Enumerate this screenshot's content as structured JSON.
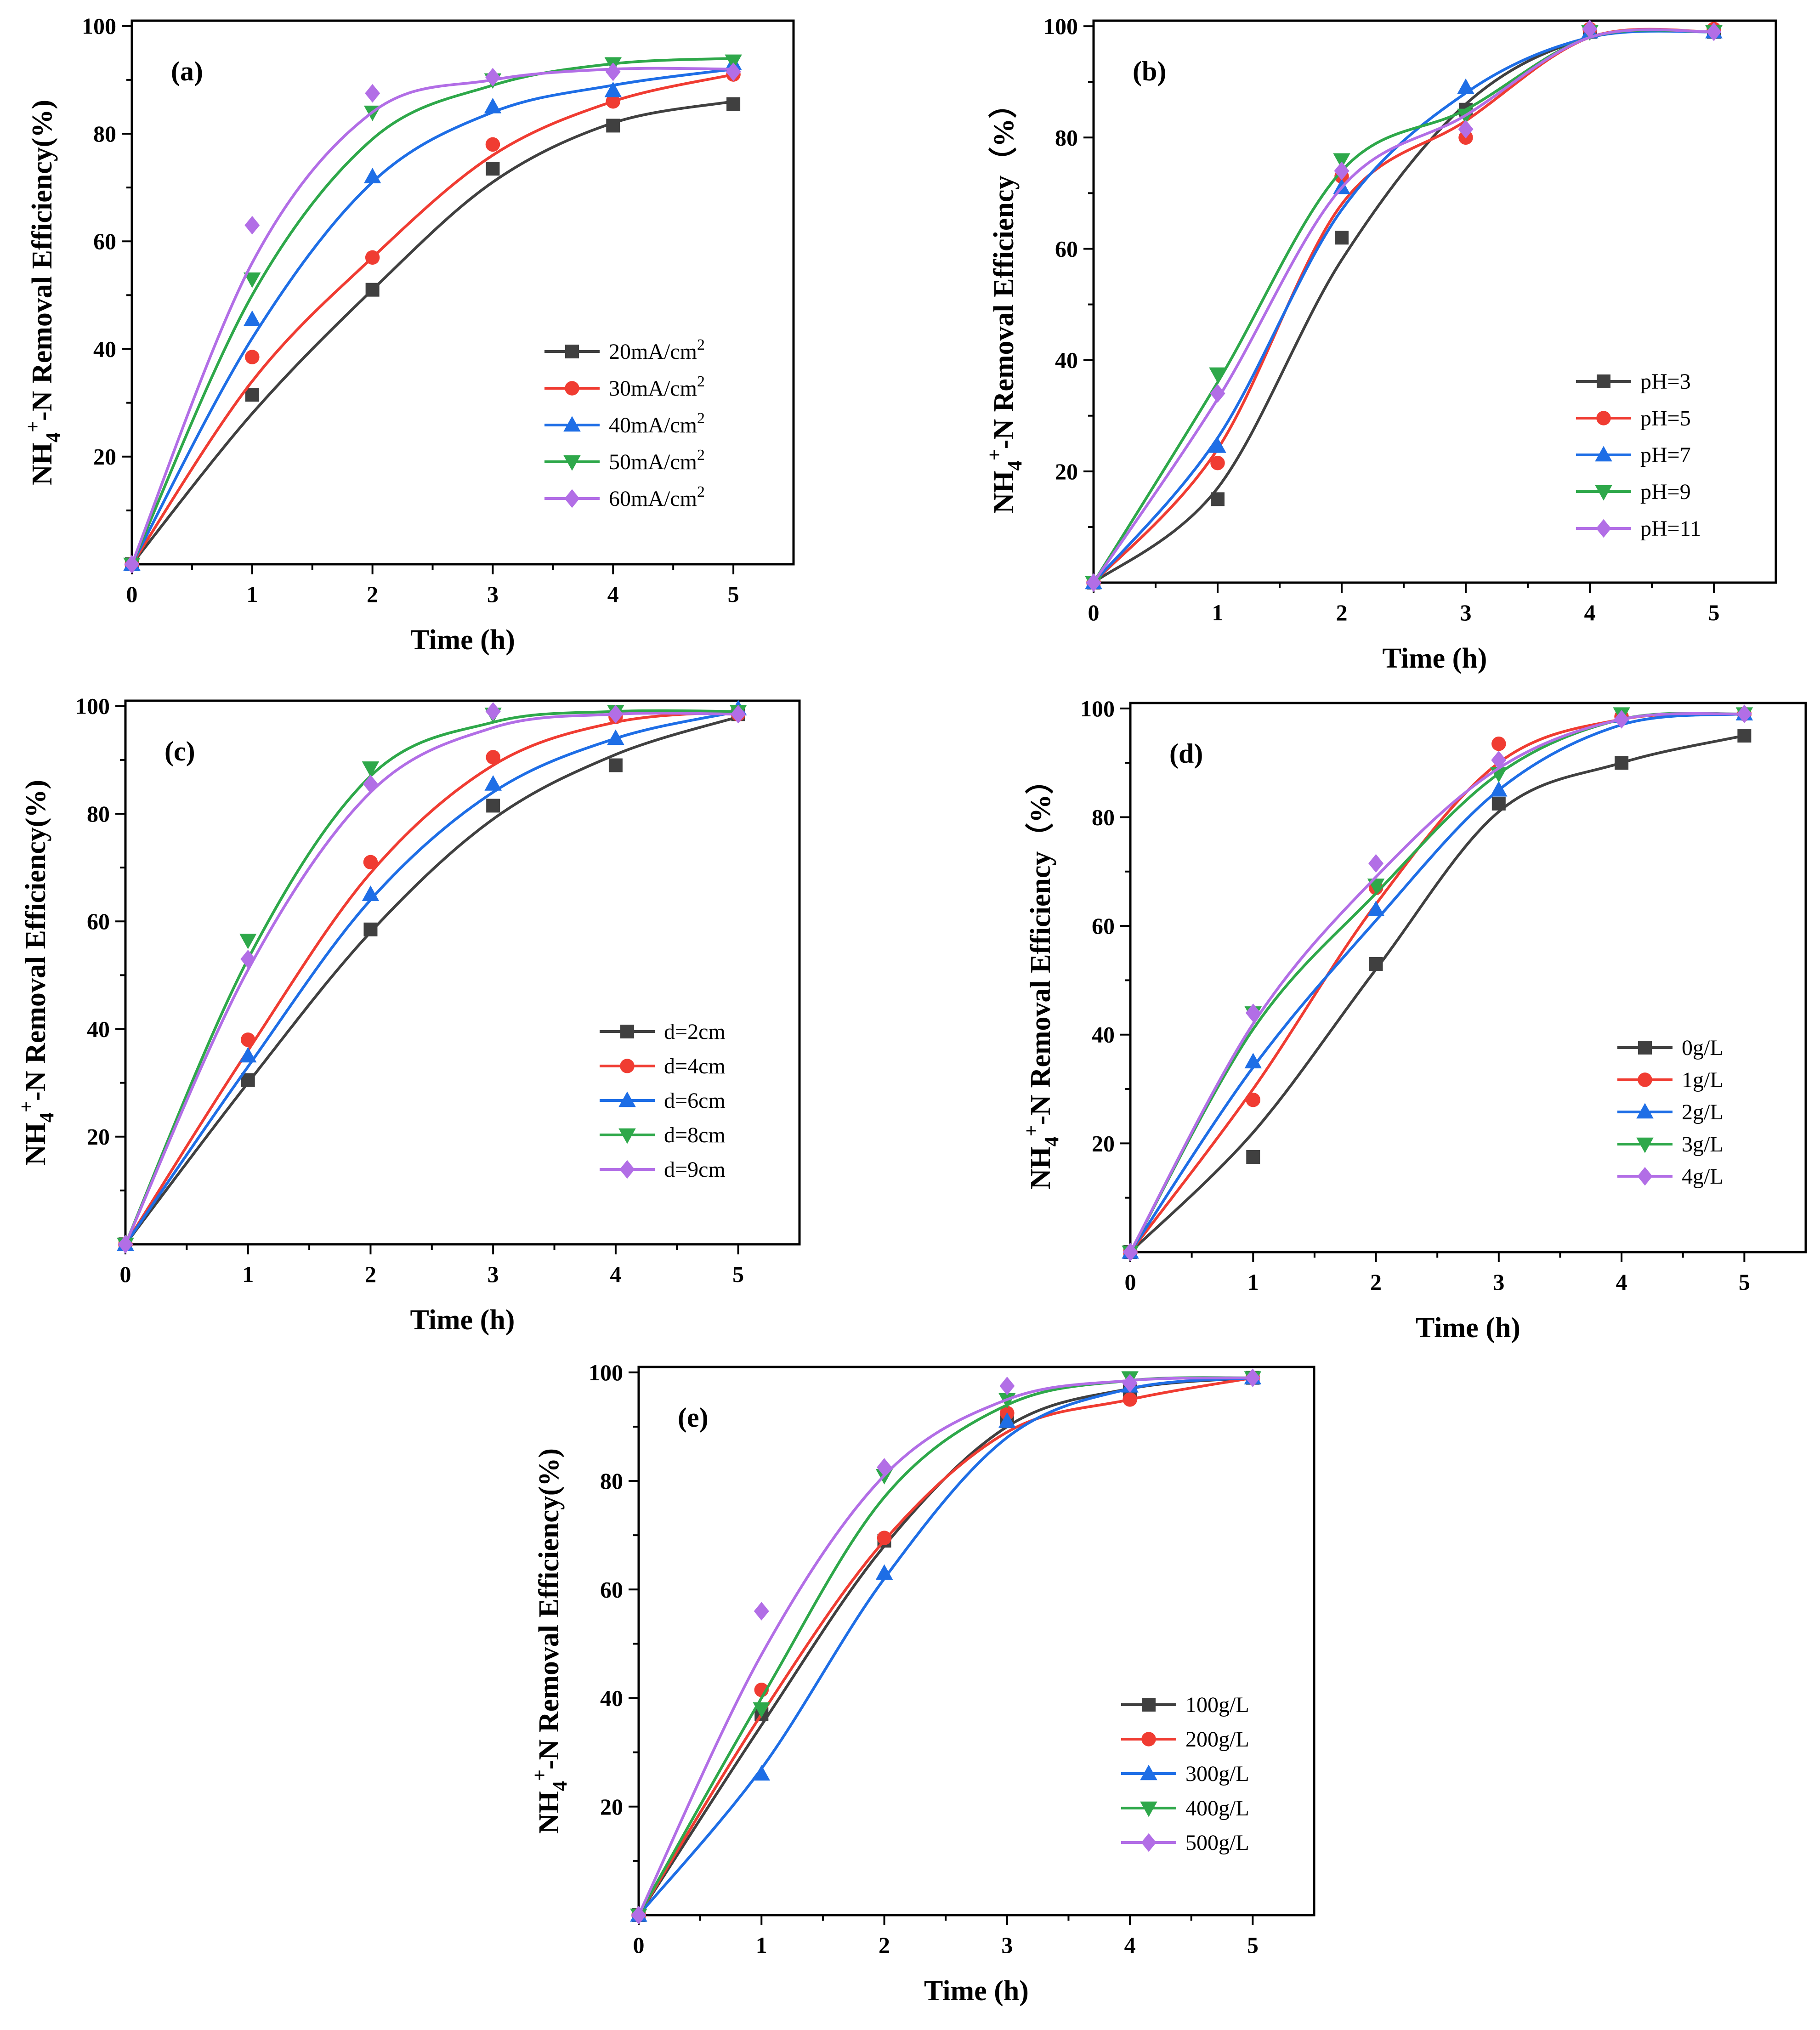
{
  "colors": {
    "series": [
      "#404040",
      "#f03c32",
      "#1e6ee6",
      "#2ea84a",
      "#b26ee6"
    ],
    "markers": [
      "square",
      "circle",
      "triangle-up",
      "triangle-down",
      "diamond"
    ]
  },
  "chart_data": [
    {
      "panel": "(a)",
      "type": "line",
      "x": [
        0,
        1,
        2,
        3,
        4,
        5
      ],
      "xlabel": "Time (h)",
      "ylabel_main": "NH",
      "ylabel_sub": "4",
      "ylabel_sup": "+",
      "ylabel_rest": "-N  Removal Efficiency(%)",
      "xticks": [
        "0",
        "1",
        "2",
        "3",
        "4",
        "5"
      ],
      "yticks": [
        "20",
        "40",
        "60",
        "80",
        "100"
      ],
      "xlim": [
        0,
        5.5
      ],
      "ylim": [
        0,
        101
      ],
      "legend_position": "lower-right",
      "series": [
        {
          "name": "20mA/cm",
          "sup": "2",
          "values": [
            0,
            31.5,
            51,
            73.5,
            81.5,
            85.5
          ],
          "curve": [
            0,
            28,
            51,
            71,
            82,
            86
          ]
        },
        {
          "name": "30mA/cm",
          "sup": "2",
          "values": [
            0,
            38.5,
            57,
            78,
            86,
            91
          ],
          "curve": [
            0,
            34,
            57,
            76,
            86,
            91
          ]
        },
        {
          "name": "40mA/cm",
          "sup": "2",
          "values": [
            0,
            45.5,
            72,
            85,
            88,
            93
          ],
          "curve": [
            0,
            42,
            71,
            84,
            89,
            92
          ]
        },
        {
          "name": "50mA/cm",
          "sup": "2",
          "values": [
            0,
            53,
            84,
            90,
            93,
            93.5
          ],
          "curve": [
            0,
            50,
            79,
            89,
            93,
            94
          ]
        },
        {
          "name": "60mA/cm",
          "sup": "2",
          "values": [
            0,
            63,
            87.5,
            90.5,
            91.5,
            91.5
          ],
          "curve": [
            0,
            56,
            84,
            90,
            92,
            92
          ]
        }
      ]
    },
    {
      "panel": "(b)",
      "type": "line",
      "x": [
        0,
        1,
        2,
        3,
        4,
        5
      ],
      "xlabel": "Time (h)",
      "ylabel_main": "NH",
      "ylabel_sub": "4",
      "ylabel_sup": "+",
      "ylabel_rest": "-N Removal Efficiency（%）",
      "xticks": [
        "0",
        "1",
        "2",
        "3",
        "4",
        "5"
      ],
      "yticks": [
        "20",
        "40",
        "60",
        "80",
        "100"
      ],
      "xlim": [
        0,
        5.5
      ],
      "ylim": [
        0,
        101
      ],
      "legend_position": "lower-right",
      "series": [
        {
          "name": "pH=3",
          "sup": "",
          "values": [
            0,
            15,
            62,
            85,
            99,
            99
          ],
          "curve": [
            0,
            17,
            58,
            86,
            98,
            99
          ]
        },
        {
          "name": "pH=5",
          "sup": "",
          "values": [
            0,
            21.5,
            73,
            80,
            99.5,
            99.5
          ],
          "curve": [
            0,
            24,
            68,
            83,
            98,
            99
          ]
        },
        {
          "name": "pH=7",
          "sup": "",
          "values": [
            0,
            24.5,
            71,
            89,
            99,
            99
          ],
          "curve": [
            0,
            26,
            67,
            88,
            98,
            99
          ]
        },
        {
          "name": "pH=9",
          "sup": "",
          "values": [
            0,
            37.5,
            76,
            84,
            99,
            99
          ],
          "curve": [
            0,
            36,
            74,
            85,
            98,
            99
          ]
        },
        {
          "name": "pH=11",
          "sup": "",
          "values": [
            0,
            34,
            74,
            81.5,
            99.5,
            99
          ],
          "curve": [
            0,
            33,
            71,
            84,
            98,
            99
          ]
        }
      ]
    },
    {
      "panel": "(c)",
      "type": "line",
      "x": [
        0,
        1,
        2,
        3,
        4,
        5
      ],
      "xlabel": "Time (h)",
      "ylabel_main": "NH",
      "ylabel_sub": "4",
      "ylabel_sup": "+",
      "ylabel_rest": "-N Removal Efficiency(%)",
      "xticks": [
        "0",
        "1",
        "2",
        "3",
        "4",
        "5"
      ],
      "yticks": [
        "20",
        "40",
        "60",
        "80",
        "100"
      ],
      "xlim": [
        0,
        5.5
      ],
      "ylim": [
        0,
        101
      ],
      "legend_position": "lower-right",
      "series": [
        {
          "name": "d=2cm",
          "sup": "",
          "values": [
            0,
            30.5,
            58.5,
            81.5,
            89,
            98.5
          ],
          "curve": [
            0,
            30,
            58,
            79,
            91,
            98
          ]
        },
        {
          "name": "d=4cm",
          "sup": "",
          "values": [
            0,
            38,
            71,
            90.5,
            98,
            98.5
          ],
          "curve": [
            0,
            36,
            69,
            89,
            97,
            99
          ]
        },
        {
          "name": "d=6cm",
          "sup": "",
          "values": [
            0,
            35,
            65,
            85.5,
            94,
            99.5
          ],
          "curve": [
            0,
            33,
            64,
            84,
            94,
            99
          ]
        },
        {
          "name": "d=8cm",
          "sup": "",
          "values": [
            0,
            56.5,
            88.5,
            98.5,
            99,
            99
          ],
          "curve": [
            0,
            53,
            87,
            97,
            99,
            99
          ]
        },
        {
          "name": "d=9cm",
          "sup": "",
          "values": [
            0,
            53,
            85.5,
            99,
            98.5,
            98.5
          ],
          "curve": [
            0,
            51,
            84,
            96,
            98.5,
            98.5
          ]
        }
      ]
    },
    {
      "panel": "(d)",
      "type": "line",
      "x": [
        0,
        1,
        2,
        3,
        4,
        5
      ],
      "xlabel": "Time (h)",
      "ylabel_main": "NH",
      "ylabel_sub": "4",
      "ylabel_sup": "+",
      "ylabel_rest": "-N Removal Efficiency（%）",
      "xticks": [
        "0",
        "1",
        "2",
        "3",
        "4",
        "5"
      ],
      "yticks": [
        "20",
        "40",
        "60",
        "80",
        "100"
      ],
      "xlim": [
        0,
        5.5
      ],
      "ylim": [
        0,
        101
      ],
      "legend_position": "lower-right",
      "series": [
        {
          "name": "0g/L",
          "sup": "",
          "values": [
            0,
            17.5,
            53,
            82.5,
            90,
            95
          ],
          "curve": [
            0,
            22,
            52,
            81,
            90,
            95
          ]
        },
        {
          "name": "1g/L",
          "sup": "",
          "values": [
            0,
            28,
            67,
            93.5,
            98.5,
            99
          ],
          "curve": [
            0,
            30,
            64,
            90,
            98,
            99
          ]
        },
        {
          "name": "2g/L",
          "sup": "",
          "values": [
            0,
            35,
            63,
            85,
            98.5,
            99
          ],
          "curve": [
            0,
            34,
            61,
            85,
            97,
            99
          ]
        },
        {
          "name": "3g/L",
          "sup": "",
          "values": [
            0,
            44,
            67.5,
            88,
            99,
            99
          ],
          "curve": [
            0,
            41,
            66,
            88,
            98,
            99
          ]
        },
        {
          "name": "4g/L",
          "sup": "",
          "values": [
            0,
            44,
            71.5,
            90.5,
            98,
            99
          ],
          "curve": [
            0,
            42,
            69,
            89,
            98,
            99
          ]
        }
      ]
    },
    {
      "panel": "(e)",
      "type": "line",
      "x": [
        0,
        1,
        2,
        3,
        4,
        5
      ],
      "xlabel": "Time (h)",
      "ylabel_main": "NH",
      "ylabel_sub": "4",
      "ylabel_sup": "+",
      "ylabel_rest": "-N Removal Efficiency(%)",
      "xticks": [
        "0",
        "1",
        "2",
        "3",
        "4",
        "5"
      ],
      "yticks": [
        "20",
        "40",
        "60",
        "80",
        "100"
      ],
      "xlim": [
        0,
        5.5
      ],
      "ylim": [
        0,
        101
      ],
      "legend_position": "lower-right",
      "series": [
        {
          "name": "100g/L",
          "sup": "",
          "values": [
            0,
            37,
            69,
            91,
            96.5,
            99
          ],
          "curve": [
            0,
            35,
            68,
            90,
            97,
            99
          ]
        },
        {
          "name": "200g/L",
          "sup": "",
          "values": [
            0,
            41.5,
            69.5,
            92.5,
            95,
            99
          ],
          "curve": [
            0,
            37,
            69,
            89,
            95,
            99
          ]
        },
        {
          "name": "300g/L",
          "sup": "",
          "values": [
            0,
            26,
            63,
            91,
            97.5,
            99
          ],
          "curve": [
            0,
            27,
            62,
            88,
            97,
            99
          ]
        },
        {
          "name": "400g/L",
          "sup": "",
          "values": [
            0,
            38,
            81,
            95,
            99,
            99
          ],
          "curve": [
            0,
            40,
            77,
            94,
            98.5,
            99
          ]
        },
        {
          "name": "500g/L",
          "sup": "",
          "values": [
            0,
            56,
            82.5,
            97.5,
            98,
            99
          ],
          "curve": [
            0,
            48,
            81,
            95,
            98.5,
            99
          ]
        }
      ]
    }
  ]
}
